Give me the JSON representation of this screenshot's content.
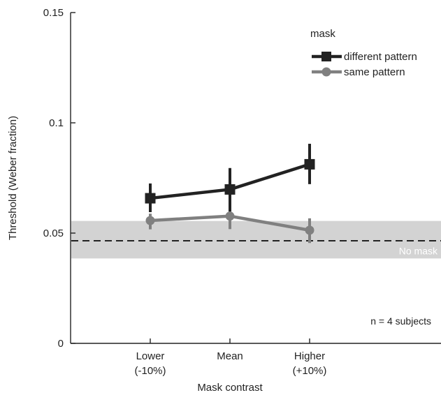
{
  "chart_data": {
    "type": "line",
    "xlabel": "Mask contrast",
    "ylabel": "Threshold (Weber fraction)",
    "ylim": [
      0,
      0.15
    ],
    "xlim": [
      0,
      4
    ],
    "categories": [
      {
        "line1": "Lower",
        "line2": "(-10%)",
        "x": 1
      },
      {
        "line1": "Mean",
        "line2": "",
        "x": 2
      },
      {
        "line1": "Higher",
        "line2": "(+10%)",
        "x": 3
      }
    ],
    "yticks": [
      {
        "value": 0,
        "label": "0"
      },
      {
        "value": 0.05,
        "label": "0.05"
      },
      {
        "value": 0.1,
        "label": "0.1"
      },
      {
        "value": 0.15,
        "label": "0.15"
      }
    ],
    "legend_title": "mask",
    "legend_position": "top-right",
    "series": [
      {
        "name": "different pattern",
        "marker": "square",
        "color": "#222222",
        "values": [
          0.0658,
          0.0698,
          0.0812
        ],
        "err_low": [
          0.0595,
          0.0598,
          0.0722
        ],
        "err_high": [
          0.0725,
          0.0795,
          0.0905
        ]
      },
      {
        "name": "same pattern",
        "marker": "circle",
        "color": "#808080",
        "values": [
          0.0557,
          0.0577,
          0.0513
        ],
        "err_low": [
          0.0517,
          0.0518,
          0.0455
        ],
        "err_high": [
          0.0588,
          0.0605,
          0.0567
        ]
      }
    ],
    "reference": {
      "label": "No mask",
      "value": 0.0465,
      "band": [
        0.0385,
        0.0555
      ],
      "band_color": "#d3d3d3",
      "line_style": "dashed"
    },
    "annotation": "n = 4 subjects"
  }
}
